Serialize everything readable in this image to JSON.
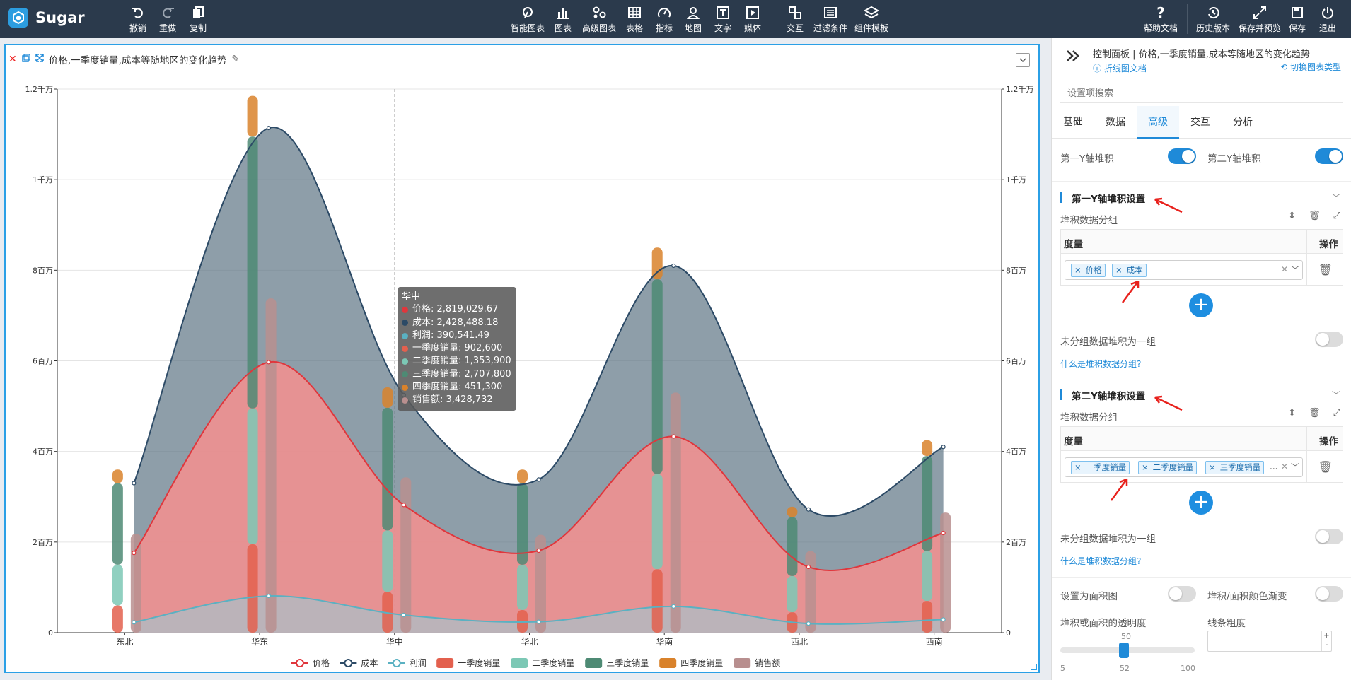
{
  "app": {
    "name": "Sugar"
  },
  "toolbar": {
    "undo": "撤销",
    "redo": "重做",
    "copy": "复制",
    "smart_chart": "智能图表",
    "chart": "图表",
    "adv_chart": "高级图表",
    "table": "表格",
    "metric": "指标",
    "map": "地图",
    "text": "文字",
    "media": "媒体",
    "interact": "交互",
    "filter": "过滤条件",
    "template": "组件模板",
    "help": "帮助文档",
    "history": "历史版本",
    "save_preview": "保存并预览",
    "save": "保存",
    "exit": "退出"
  },
  "chart_panel": {
    "title": "价格,一季度销量,成本等随地区的变化趋势"
  },
  "chart_data": {
    "type": "line",
    "categories": [
      "东北",
      "华东",
      "华中",
      "华北",
      "华南",
      "西北",
      "西南"
    ],
    "y_left_ticks": [
      "0",
      "2百万",
      "4百万",
      "6百万",
      "8百万",
      "1千万",
      "1.2千万"
    ],
    "y_right_ticks": [
      "0",
      "2百万",
      "4百万",
      "6百万",
      "8百万",
      "1千万",
      "1.2千万"
    ],
    "ylim": [
      0,
      12000000
    ],
    "axis": "left",
    "series": [
      {
        "name": "价格",
        "kind": "area",
        "color": "#e0363c",
        "values": [
          1760000,
          5970000,
          2819029.67,
          1810000,
          4330000,
          1450000,
          2200000
        ]
      },
      {
        "name": "成本",
        "kind": "area",
        "color": "#2c4a66",
        "values": [
          3300000,
          11140000,
          5247517.85,
          3380000,
          8100000,
          2720000,
          4100000
        ]
      },
      {
        "name": "利润",
        "kind": "area",
        "color": "#5ab1c2",
        "values": [
          230000,
          810000,
          390541.49,
          240000,
          580000,
          200000,
          290000
        ]
      },
      {
        "name": "一季度销量",
        "kind": "bar",
        "color": "#e3604e",
        "values": [
          600000,
          1950000,
          902600,
          500000,
          1400000,
          450000,
          700000
        ]
      },
      {
        "name": "二季度销量",
        "kind": "bar",
        "color": "#7cc8b5",
        "values": [
          900000,
          3000000,
          1353900,
          1000000,
          2100000,
          800000,
          1100000
        ]
      },
      {
        "name": "三季度销量",
        "kind": "bar",
        "color": "#4e8a74",
        "values": [
          1800000,
          6000000,
          2707800,
          1800000,
          4300000,
          1300000,
          2100000
        ]
      },
      {
        "name": "四季度销量",
        "kind": "bar",
        "color": "#d9822b",
        "values": [
          300000,
          900000,
          451300,
          300000,
          700000,
          230000,
          350000
        ]
      },
      {
        "name": "销售额",
        "kind": "bar",
        "color": "#b88f8f",
        "values": [
          2180000,
          7380000,
          3428732,
          2160000,
          5300000,
          1800000,
          2650000
        ]
      }
    ],
    "legend_position": "bottom",
    "grid": true
  },
  "tooltip": {
    "title": "华中",
    "rows": [
      {
        "label": "价格: 2,819,029.67",
        "color": "#e0363c"
      },
      {
        "label": "成本: 2,428,488.18",
        "color": "#2c4a66"
      },
      {
        "label": "利润: 390,541.49",
        "color": "#5ab1c2"
      },
      {
        "label": "一季度销量: 902,600",
        "color": "#e3604e"
      },
      {
        "label": "二季度销量: 1,353,900",
        "color": "#7cc8b5"
      },
      {
        "label": "三季度销量: 2,707,800",
        "color": "#4e8a74"
      },
      {
        "label": "四季度销量: 451,300",
        "color": "#d9822b"
      },
      {
        "label": "销售额: 3,428,732",
        "color": "#b88f8f"
      }
    ]
  },
  "panel": {
    "title": "控制面板 | 价格,一季度销量,成本等随地区的变化趋势",
    "doc_link": "折线图文档",
    "switch_link": "切换图表类型",
    "search_placeholder": "设置项搜索",
    "tabs": [
      "基础",
      "数据",
      "高级",
      "交互",
      "分析"
    ],
    "active_tab": "高级",
    "y1_stack": "第一Y轴堆积",
    "y2_stack": "第二Y轴堆积",
    "section1": {
      "title": "第一Y轴堆积设置",
      "group_label": "堆积数据分组",
      "col_measure": "度量",
      "col_action": "操作",
      "tags": [
        "价格",
        "成本"
      ],
      "ungrouped": "未分组数据堆积为一组",
      "help": "什么是堆积数据分组?"
    },
    "section2": {
      "title": "第二Y轴堆积设置",
      "group_label": "堆积数据分组",
      "col_measure": "度量",
      "col_action": "操作",
      "tags": [
        "一季度销量",
        "二季度销量",
        "三季度销量"
      ],
      "more": "...",
      "ungrouped": "未分组数据堆积为一组",
      "help": "什么是堆积数据分组?"
    },
    "area_chart": "设置为面积图",
    "gradient": "堆积/面积颜色渐变",
    "opacity_label": "堆积或面积的透明度",
    "line_width": "线条粗度",
    "slider": {
      "min": "5",
      "max": "100",
      "value": "52",
      "top": "50"
    }
  }
}
